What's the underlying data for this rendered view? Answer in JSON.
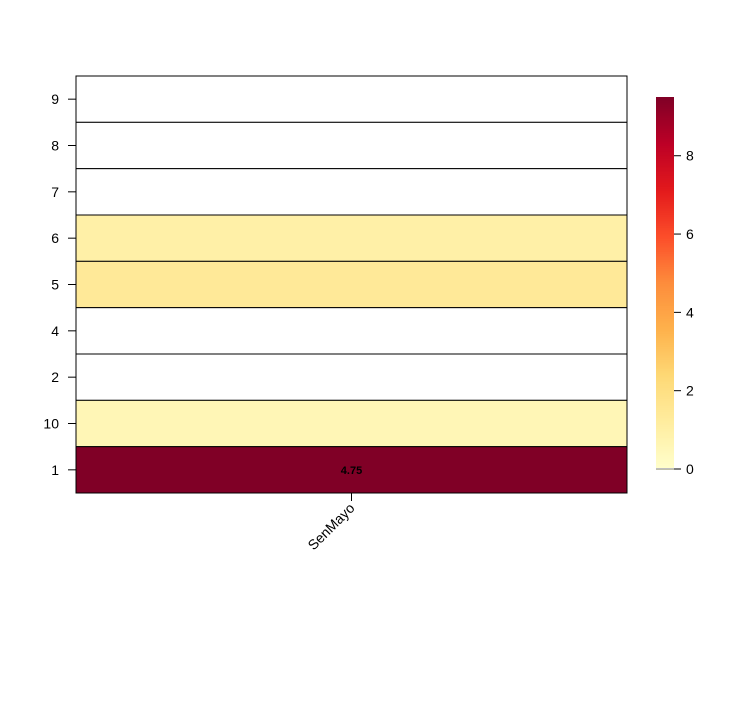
{
  "chart_data": {
    "type": "heatmap",
    "title": "",
    "xlabel": "",
    "ylabel": "",
    "columns": [
      "SenMayo"
    ],
    "rows": [
      "9",
      "8",
      "7",
      "6",
      "5",
      "4",
      "2",
      "10",
      "1"
    ],
    "values": [
      [
        0
      ],
      [
        0
      ],
      [
        0
      ],
      [
        1.0
      ],
      [
        1.4
      ],
      [
        0
      ],
      [
        0
      ],
      [
        0.6
      ],
      [
        9.5
      ]
    ],
    "cell_labels": [
      [
        "",
        "",
        "",
        "",
        "",
        "",
        "",
        "",
        "4.75"
      ]
    ],
    "colorbar": {
      "min": 0,
      "max": 9.5,
      "ticks": [
        0,
        2,
        4,
        6,
        8
      ],
      "palette": [
        "#FFFFCC",
        "#FFEDA0",
        "#FED976",
        "#FEB24C",
        "#FD8D3C",
        "#FC4E2A",
        "#E31A1C",
        "#BD0026",
        "#800026"
      ],
      "zero_color": "#FFFFFF"
    },
    "legend_position": "right",
    "grid": true
  }
}
